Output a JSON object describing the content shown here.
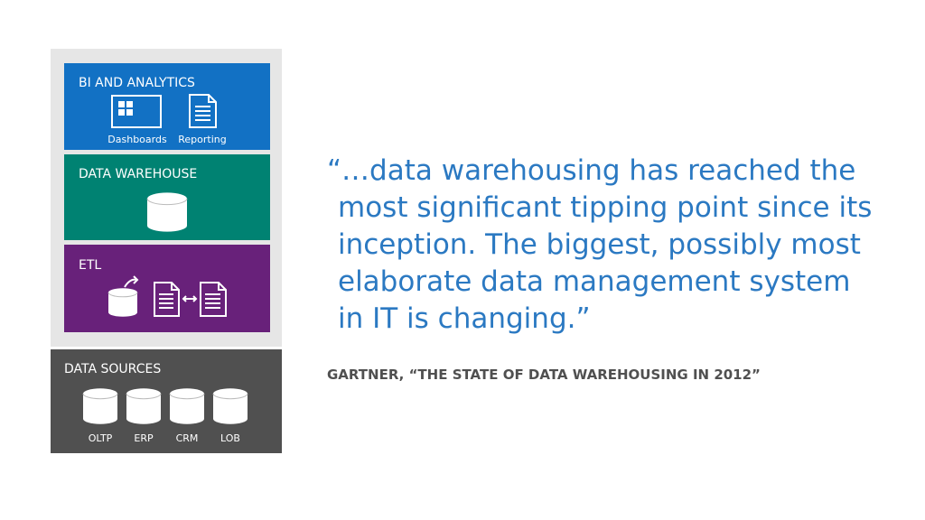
{
  "layers": [
    {
      "title": "BI AND ANALYTICS",
      "items": [
        "Dashboards",
        "Reporting"
      ]
    },
    {
      "title": "DATA WAREHOUSE"
    },
    {
      "title": "ETL"
    }
  ],
  "sources": {
    "title": "DATA SOURCES",
    "items": [
      "OLTP",
      "ERP",
      "CRM",
      "LOB"
    ]
  },
  "quote": {
    "lines": [
      "“…data warehousing has reached the",
      "most significant tipping point since its",
      "inception. The biggest, possibly most",
      "elaborate data management system",
      "in IT is changing.”"
    ],
    "attribution": "GARTNER, “THE STATE OF DATA WAREHOUSING IN 2012”"
  }
}
